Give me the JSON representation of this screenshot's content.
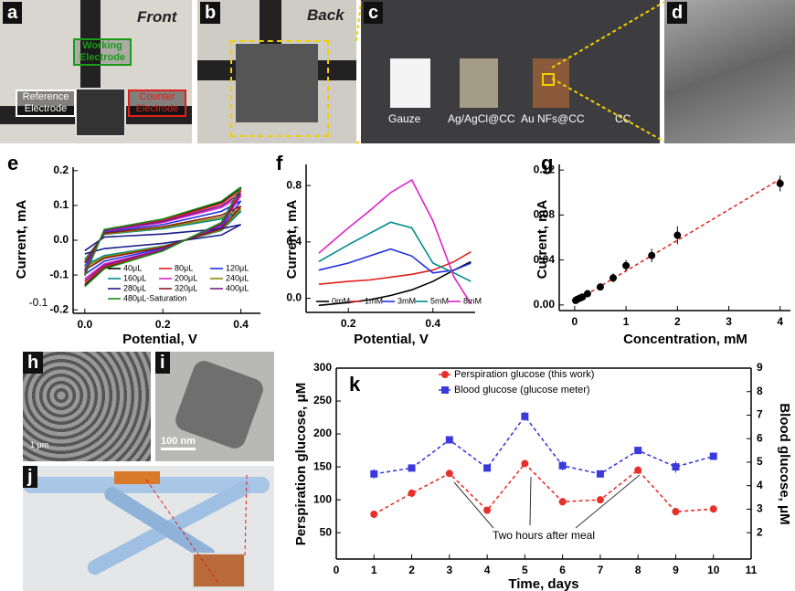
{
  "panel_labels": [
    "a",
    "b",
    "c",
    "d",
    "e",
    "f",
    "g",
    "h",
    "i",
    "j",
    "k"
  ],
  "photo_texts": {
    "front": "Front",
    "back": "Back",
    "working": "Working Electrode",
    "reference": "Reference Electrode",
    "counter": "Counter Electrode",
    "gauze": "Gauze",
    "agcl": "Ag/AgCl@CC",
    "au": "Au NFs@CC",
    "cc": "CC"
  },
  "scale_bars": [
    "1 μm",
    "100 nm"
  ],
  "chart_data": [
    {
      "type": "line",
      "xlabel": "Potential, V",
      "ylabel": "Current, mA",
      "annotations": [
        "-0.1"
      ],
      "xlim": [
        -0.03,
        0.45
      ],
      "xticks": [
        {
          "value": 0,
          "label": "0.0"
        },
        0.2,
        0.4
      ],
      "ylim": [
        -0.21,
        0.21
      ],
      "yticks": [
        -0.2,
        -0.1,
        {
          "value": 0,
          "label": "0.0"
        },
        0.1,
        0.2
      ],
      "x": [
        0,
        0.05,
        0.2,
        0.35,
        0.4,
        0.35,
        0.2,
        0.05,
        0
      ],
      "legend": "lower center",
      "series": [
        {
          "name": "40μL",
          "color": "#000000",
          "values": [
            -0.1,
            0.03,
            0.06,
            0.11,
            0.15,
            0.05,
            -0.03,
            -0.08,
            -0.13
          ]
        },
        {
          "name": "80μL",
          "color": "#e0201b",
          "values": [
            -0.095,
            0.029,
            0.057,
            0.105,
            0.143,
            0.048,
            -0.029,
            -0.076,
            -0.124
          ]
        },
        {
          "name": "120μL",
          "color": "#1f2fe0",
          "values": [
            -0.075,
            0.023,
            0.045,
            0.083,
            0.113,
            0.038,
            -0.023,
            -0.06,
            -0.098
          ]
        },
        {
          "name": "160μL",
          "color": "#008b8b",
          "values": [
            -0.055,
            0.017,
            0.033,
            0.061,
            0.083,
            0.028,
            -0.017,
            -0.044,
            -0.072
          ]
        },
        {
          "name": "200μL",
          "color": "#e020c8",
          "values": [
            -0.085,
            0.026,
            0.051,
            0.094,
            0.128,
            0.043,
            -0.026,
            -0.068,
            -0.111
          ]
        },
        {
          "name": "240μL",
          "color": "#8a8a00",
          "values": [
            -0.06,
            0.018,
            0.036,
            0.066,
            0.09,
            0.03,
            -0.018,
            -0.048,
            -0.078
          ]
        },
        {
          "name": "280μL",
          "color": "#1a1a8a",
          "values": [
            -0.03,
            0.009,
            0.018,
            0.033,
            0.045,
            0.015,
            -0.009,
            -0.024,
            -0.039
          ]
        },
        {
          "name": "320μL",
          "color": "#8b1a1a",
          "values": [
            -0.065,
            0.02,
            0.039,
            0.072,
            0.098,
            0.033,
            -0.02,
            -0.052,
            -0.085
          ]
        },
        {
          "name": "400μL",
          "color": "#7a1a8a",
          "values": [
            -0.09,
            0.027,
            0.054,
            0.099,
            0.135,
            0.045,
            -0.027,
            -0.072,
            -0.117
          ]
        },
        {
          "name": "480μL-Saturation",
          "color": "#1a8a1a",
          "values": [
            -0.102,
            0.031,
            0.061,
            0.112,
            0.153,
            0.051,
            -0.031,
            -0.082,
            -0.133
          ]
        }
      ]
    },
    {
      "type": "line",
      "xlabel": "Potential, V",
      "ylabel": "Current, mA",
      "xlim": [
        0.1,
        0.5
      ],
      "xticks": [
        0.2,
        0.4
      ],
      "ylim": [
        -0.1,
        0.95
      ],
      "yticks": [
        {
          "value": 0,
          "label": "0.0"
        },
        0.4,
        0.8
      ],
      "x": [
        0.13,
        0.2,
        0.25,
        0.3,
        0.35,
        0.4,
        0.45,
        0.49
      ],
      "legend": "lower center",
      "series": [
        {
          "name": "0mM",
          "color": "#000000",
          "values": [
            -0.05,
            -0.03,
            -0.01,
            0.02,
            0.06,
            0.12,
            0.2,
            0.26
          ]
        },
        {
          "name": "1mM",
          "color": "#e0201b",
          "values": [
            0.1,
            0.12,
            0.13,
            0.15,
            0.17,
            0.2,
            0.26,
            0.33
          ]
        },
        {
          "name": "3mM",
          "color": "#1f2fe0",
          "values": [
            0.2,
            0.25,
            0.3,
            0.35,
            0.3,
            0.18,
            0.2,
            0.25
          ]
        },
        {
          "name": "5mM",
          "color": "#008b8b",
          "values": [
            0.26,
            0.38,
            0.46,
            0.54,
            0.5,
            0.25,
            0.18,
            0.12
          ]
        },
        {
          "name": "8mM",
          "color": "#e020c8",
          "values": [
            0.32,
            0.5,
            0.62,
            0.75,
            0.84,
            0.55,
            0.15,
            -0.04
          ]
        }
      ]
    },
    {
      "type": "scatter",
      "xlabel": "Concentration, mM",
      "ylabel": "Current, mA",
      "xlim": [
        -0.3,
        4.2
      ],
      "xticks": [
        0,
        1,
        2,
        3,
        4
      ],
      "ylim": [
        -0.005,
        0.125
      ],
      "yticks": [
        {
          "value": 0,
          "label": "0.00"
        },
        0.04,
        0.08,
        0.12
      ],
      "series": [
        {
          "color": "#000000",
          "x": [
            0.02,
            0.05,
            0.1,
            0.15,
            0.25,
            0.5,
            0.75,
            1,
            1.5,
            2,
            4
          ],
          "values": [
            0.004,
            0.005,
            0.006,
            0.007,
            0.01,
            0.016,
            0.024,
            0.035,
            0.044,
            0.062,
            0.108
          ],
          "errors": [
            0.001,
            0.001,
            0.001,
            0.002,
            0.002,
            0.003,
            0.004,
            0.005,
            0.006,
            0.008,
            0.007
          ]
        }
      ],
      "fit": {
        "color": "#e0201b",
        "x": [
          0,
          4
        ],
        "values": [
          0.003,
          0.112
        ]
      }
    },
    {
      "type": "line",
      "xlabel": "Time, days",
      "ylabel": "Perspiration glucose, μM",
      "y2label": "Blood glucose, μM",
      "annotations": [
        "Two hours after meal"
      ],
      "legend": "upper center",
      "xlim": [
        0,
        11
      ],
      "xticks": [
        0,
        1,
        2,
        3,
        4,
        5,
        6,
        7,
        8,
        9,
        10,
        11
      ],
      "ylim": [
        10,
        300
      ],
      "yticks": [
        50,
        100,
        150,
        200,
        250,
        300
      ],
      "y2lim": [
        0.88,
        9
      ],
      "y2ticks": [
        2,
        3,
        4,
        5,
        6,
        7,
        8,
        9
      ],
      "x": [
        1,
        2,
        3,
        4,
        5,
        6,
        7,
        8,
        9,
        10
      ],
      "series": [
        {
          "name": "Perspiration glucose (this work)",
          "color": "#e8302a",
          "marker": "circle",
          "linestyle": "dashed",
          "values": [
            78,
            110,
            140,
            84,
            155,
            97,
            100,
            145,
            82,
            86
          ],
          "errors": [
            5,
            6,
            5,
            4,
            5,
            6,
            4,
            6,
            6,
            5
          ]
        },
        {
          "name": "Blood glucose (glucose meter)",
          "color": "#3a3adc",
          "marker": "square",
          "linestyle": "dashed",
          "axis": "y2",
          "values": [
            4.5,
            4.75,
            5.95,
            4.75,
            6.95,
            4.85,
            4.5,
            5.5,
            4.8,
            5.25
          ],
          "errors": [
            0.2,
            0.1,
            0.1,
            0.1,
            0.2,
            0.2,
            0.1,
            0.1,
            0.25,
            0.1
          ]
        }
      ]
    }
  ]
}
